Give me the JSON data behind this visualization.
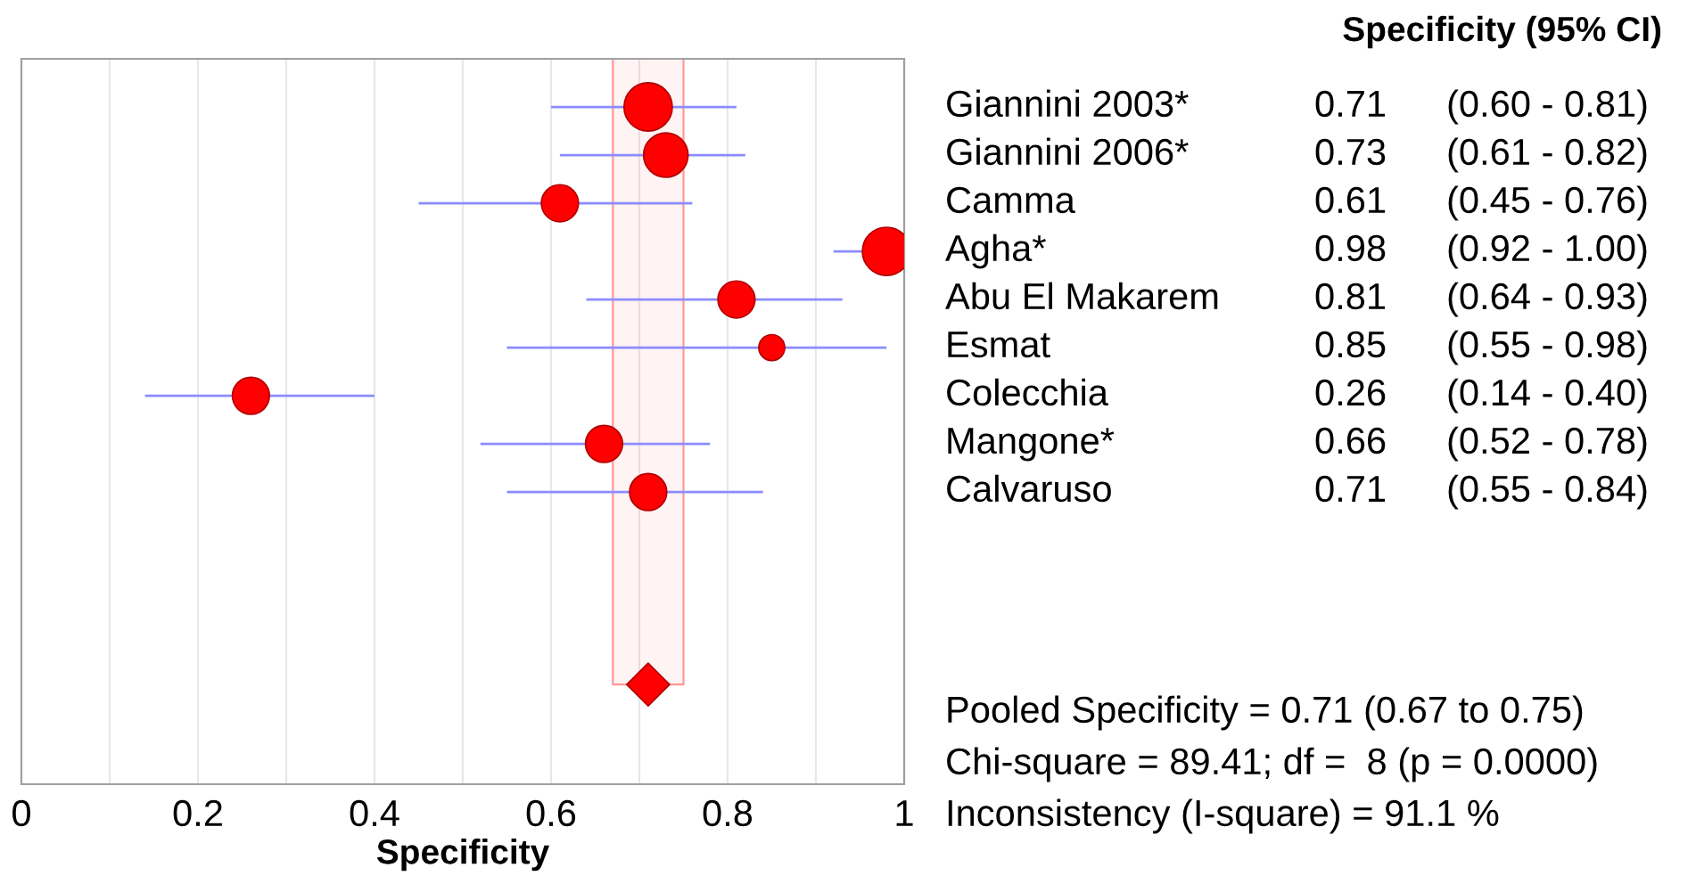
{
  "chart_data": {
    "type": "scatter",
    "orientation": "horizontal",
    "xlabel": "Specificity",
    "categories": [
      "Giannini 2003*",
      "Giannini 2006*",
      "Camma",
      "Agha*",
      "Abu El Makarem",
      "Esmat",
      "Colecchia",
      "Mangone*",
      "Calvaruso",
      null,
      null,
      null,
      null
    ],
    "series": [
      {
        "type": "bubble",
        "color": "#ff0000",
        "values": [
          0.71,
          0.73,
          0.61,
          0.98,
          0.81,
          0.85,
          0.26,
          0.66,
          0.71,
          null,
          null,
          null,
          null
        ],
        "sizes": [
          1,
          0.85,
          0.59,
          1,
          0.59,
          0.29,
          0.59,
          0.59,
          0.59,
          null,
          null,
          null,
          null
        ],
        "errors": [
          [
            0.6,
            0.81
          ],
          [
            0.61,
            0.82
          ],
          [
            0.45,
            0.76
          ],
          [
            0.92,
            1.0
          ],
          [
            0.64,
            0.93
          ],
          [
            0.55,
            0.98
          ],
          [
            0.14,
            0.4
          ],
          [
            0.52,
            0.78
          ],
          [
            0.55,
            0.84
          ],
          null,
          null,
          null,
          null
        ],
        "value_labels": [
          "0.71",
          "0.73",
          "0.61",
          "0.98",
          "0.81",
          "0.85",
          "0.26",
          "0.66",
          "0.71",
          null,
          null,
          null,
          null
        ]
      },
      {
        "type": "scatter",
        "marker": "diamond",
        "color": "#ff0000",
        "values": [
          null,
          null,
          null,
          null,
          null,
          null,
          null,
          null,
          null,
          null,
          null,
          null,
          0.71
        ]
      }
    ],
    "bands": [
      {
        "axis": "x",
        "from": 0.67,
        "to": 0.75,
        "color": "#ff9999"
      }
    ],
    "xlim": [
      0,
      1
    ],
    "xticks": [
      0,
      {
        "value": 0.1,
        "label": null
      },
      0.2,
      {
        "value": 0.3,
        "label": null
      },
      0.4,
      {
        "value": 0.5,
        "label": null
      },
      0.6,
      {
        "value": 0.7,
        "label": null
      },
      0.8,
      {
        "value": 0.9,
        "label": null
      },
      1
    ],
    "grid": "x",
    "legend": false,
    "annotations": [
      "Specificity (95% CI)",
      "(0.60 - 0.81)",
      "(0.61 - 0.82)",
      "(0.45 - 0.76)",
      "(0.92 - 1.00)",
      "(0.64 - 0.93)",
      "(0.55 - 0.98)",
      "(0.14 - 0.40)",
      "(0.52 - 0.78)",
      "(0.55 - 0.84)",
      "Pooled Specificity = 0.71 (0.67 to 0.75)",
      "Chi-square = 89.41; df =  8 (p = 0.0000)",
      "Inconsistency (I-square) = 91.1 %"
    ]
  }
}
